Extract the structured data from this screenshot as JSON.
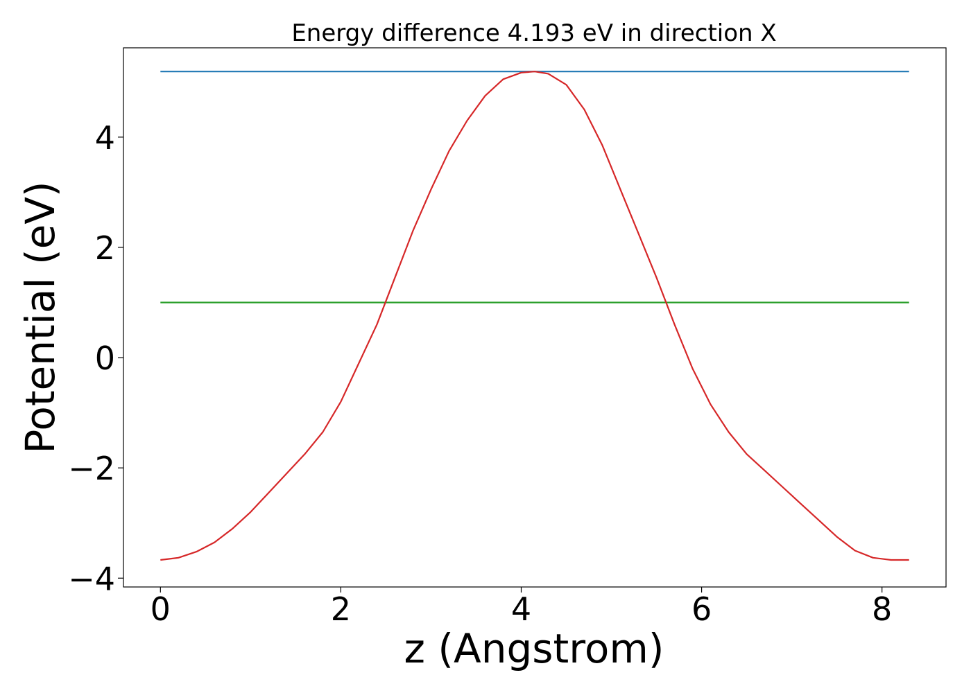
{
  "chart_data": {
    "type": "line",
    "title": "Energy difference 4.193 eV in direction X",
    "xlabel": "z (Angstrom)",
    "ylabel": "Potential (eV)",
    "xlim": [
      -0.41,
      8.71
    ],
    "ylim": [
      -4.16,
      5.62
    ],
    "x_ticks": [
      0,
      2,
      4,
      6,
      8
    ],
    "y_ticks": [
      -4,
      -2,
      0,
      2,
      4
    ],
    "x_tick_labels": [
      "0",
      "2",
      "4",
      "6",
      "8"
    ],
    "y_tick_labels": [
      "−4",
      "−2",
      "0",
      "2",
      "4"
    ],
    "grid": false,
    "legend": false,
    "series": [
      {
        "color": "#1f77b4",
        "x": [
          0,
          8.3
        ],
        "y": [
          5.19,
          5.19
        ]
      },
      {
        "color": "#2ca02c",
        "x": [
          0,
          8.3
        ],
        "y": [
          1.0,
          1.0
        ]
      },
      {
        "color": "#d62728",
        "x": [
          0,
          0.2,
          0.4,
          0.6,
          0.8,
          1.0,
          1.2,
          1.4,
          1.6,
          1.8,
          2.0,
          2.2,
          2.4,
          2.6,
          2.8,
          3.0,
          3.2,
          3.4,
          3.6,
          3.8,
          4.0,
          4.15,
          4.3,
          4.5,
          4.7,
          4.9,
          5.1,
          5.3,
          5.5,
          5.7,
          5.9,
          6.1,
          6.3,
          6.5,
          6.7,
          6.9,
          7.1,
          7.3,
          7.5,
          7.7,
          7.9,
          8.1,
          8.3
        ],
        "y": [
          -3.67,
          -3.63,
          -3.52,
          -3.35,
          -3.1,
          -2.8,
          -2.45,
          -2.1,
          -1.75,
          -1.35,
          -0.8,
          -0.1,
          0.6,
          1.45,
          2.3,
          3.05,
          3.75,
          4.3,
          4.75,
          5.05,
          5.17,
          5.19,
          5.15,
          4.95,
          4.5,
          3.85,
          3.05,
          2.25,
          1.45,
          0.6,
          -0.2,
          -0.85,
          -1.35,
          -1.75,
          -2.05,
          -2.35,
          -2.65,
          -2.95,
          -3.25,
          -3.5,
          -3.63,
          -3.67,
          -3.67
        ]
      }
    ]
  }
}
